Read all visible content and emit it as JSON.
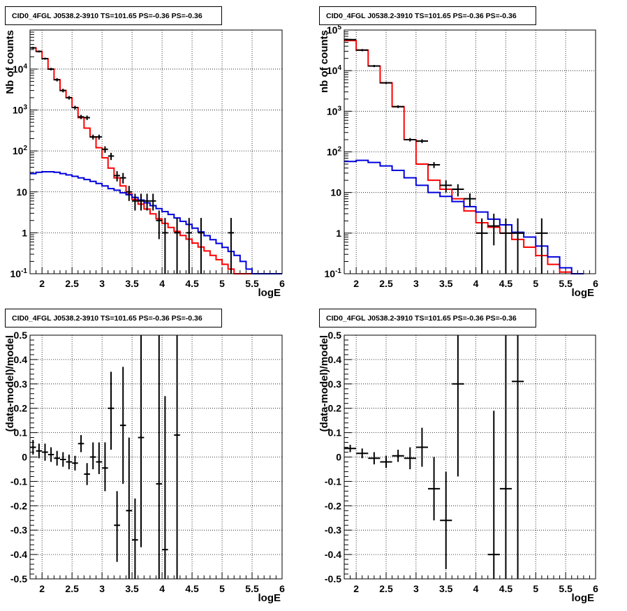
{
  "colors": {
    "data": "#000000",
    "model_total": "#ff0000",
    "model_bkg": "#0000dd",
    "frame": "#000000",
    "grid": "#000000"
  },
  "chart_data": [
    {
      "type": "line",
      "title": "CID0_4FGL J0538.2-3910 TS=101.65 PS=-0.36 PS=-0.36",
      "xlabel": "logE",
      "ylabel": "Nb of counts",
      "scale_y": "log",
      "xlim": [
        1.8,
        6
      ],
      "ylim": [
        0.1,
        90000
      ],
      "grid": true,
      "xticks": [
        "2",
        "2.5",
        "3",
        "3.5",
        "4",
        "4.5",
        "5",
        "5.5",
        "6"
      ],
      "yticks": [
        "10^-1",
        "1",
        "10",
        "10^2",
        "10^3",
        "10^4"
      ],
      "model_edges": [
        1.8,
        1.9,
        2.0,
        2.1,
        2.2,
        2.3,
        2.4,
        2.5,
        2.6,
        2.7,
        2.8,
        2.9,
        3.0,
        3.1,
        3.2,
        3.3,
        3.4,
        3.5,
        3.6,
        3.7,
        3.8,
        3.9,
        4.0,
        4.1,
        4.2,
        4.3,
        4.4,
        4.5,
        4.6,
        4.7,
        4.8,
        4.9,
        5.0,
        5.1,
        5.2,
        5.3,
        5.4,
        5.5,
        5.6,
        5.7,
        5.8,
        5.9,
        6.0
      ],
      "series": [
        {
          "values": [
            33000,
            27000,
            18000,
            10000,
            5500,
            3000,
            2000,
            1150,
            650,
            360,
            220,
            120,
            68,
            38,
            22,
            14,
            9,
            6.5,
            5,
            3.8,
            2.9,
            2.2,
            1.7,
            1.35,
            1.08,
            0.86,
            0.7,
            0.56,
            0.45,
            0.36,
            0.28,
            0.22,
            0.17,
            0.13,
            0.1,
            0.1,
            0.1,
            0.1,
            0.1,
            0.1,
            0.1,
            0.1
          ]
        },
        {
          "values": [
            28,
            30,
            31,
            31,
            30,
            28,
            26,
            24,
            22,
            20,
            18,
            16,
            14,
            12,
            11,
            9.5,
            8.5,
            7.3,
            6.3,
            5.4,
            4.6,
            3.9,
            3.3,
            2.8,
            2.3,
            1.9,
            1.6,
            1.3,
            1.05,
            0.85,
            0.68,
            0.55,
            0.44,
            0.35,
            0.28,
            0.2,
            0.13,
            0.1,
            0.1,
            0.1,
            0.1,
            0.1
          ]
        }
      ],
      "points": [
        {
          "x": 1.85,
          "y": 33000,
          "dx": 0.05,
          "lo": 31000,
          "hi": 35000
        },
        {
          "x": 1.95,
          "y": 27000,
          "dx": 0.05,
          "lo": 25500,
          "hi": 28500
        },
        {
          "x": 2.05,
          "y": 18000,
          "dx": 0.05,
          "lo": 17000,
          "hi": 19000
        },
        {
          "x": 2.15,
          "y": 10000,
          "dx": 0.05,
          "lo": 9300,
          "hi": 10700
        },
        {
          "x": 2.25,
          "y": 5500,
          "dx": 0.05,
          "lo": 5000,
          "hi": 6000
        },
        {
          "x": 2.35,
          "y": 3000,
          "dx": 0.05,
          "lo": 2700,
          "hi": 3300
        },
        {
          "x": 2.45,
          "y": 2000,
          "dx": 0.05,
          "lo": 1800,
          "hi": 2200
        },
        {
          "x": 2.55,
          "y": 1150,
          "dx": 0.05,
          "lo": 1030,
          "hi": 1270
        },
        {
          "x": 2.65,
          "y": 680,
          "dx": 0.05,
          "lo": 600,
          "hi": 760
        },
        {
          "x": 2.75,
          "y": 650,
          "dx": 0.05,
          "lo": 570,
          "hi": 730
        },
        {
          "x": 2.85,
          "y": 220,
          "dx": 0.05,
          "lo": 190,
          "hi": 250
        },
        {
          "x": 2.95,
          "y": 220,
          "dx": 0.05,
          "lo": 190,
          "hi": 250
        },
        {
          "x": 3.05,
          "y": 110,
          "dx": 0.05,
          "lo": 90,
          "hi": 130
        },
        {
          "x": 3.15,
          "y": 75,
          "dx": 0.05,
          "lo": 60,
          "hi": 90
        },
        {
          "x": 3.25,
          "y": 25,
          "dx": 0.05,
          "lo": 18,
          "hi": 32
        },
        {
          "x": 3.35,
          "y": 22,
          "dx": 0.05,
          "lo": 16,
          "hi": 29
        },
        {
          "x": 3.45,
          "y": 10,
          "dx": 0.05,
          "lo": 6,
          "hi": 14
        },
        {
          "x": 3.55,
          "y": 6,
          "dx": 0.05,
          "lo": 3.5,
          "hi": 9
        },
        {
          "x": 3.65,
          "y": 6,
          "dx": 0.05,
          "lo": 3.5,
          "hi": 9
        },
        {
          "x": 3.75,
          "y": 6,
          "dx": 0.05,
          "lo": 3.5,
          "hi": 9
        },
        {
          "x": 3.85,
          "y": 6,
          "dx": 0.05,
          "lo": 3.5,
          "hi": 9
        },
        {
          "x": 3.95,
          "y": 2,
          "dx": 0.05,
          "lo": 0.7,
          "hi": 3.5
        },
        {
          "x": 4.05,
          "y": 1,
          "dx": 0.05,
          "lo": 0.1,
          "hi": 2.3
        },
        {
          "x": 4.25,
          "y": 1,
          "dx": 0.05,
          "lo": 0.1,
          "hi": 2.3
        },
        {
          "x": 4.45,
          "y": 1,
          "dx": 0.05,
          "lo": 0.1,
          "hi": 2.3
        },
        {
          "x": 4.65,
          "y": 1,
          "dx": 0.05,
          "lo": 0.1,
          "hi": 2.3
        },
        {
          "x": 5.15,
          "y": 1,
          "dx": 0.05,
          "lo": 0.1,
          "hi": 2.3
        }
      ]
    },
    {
      "type": "line",
      "title": "CID0_4FGL J0538.2-3910 TS=101.65 PS=-0.36 PS=-0.36",
      "xlabel": "logE",
      "ylabel": "nb of counts",
      "scale_y": "log",
      "xlim": [
        1.8,
        6
      ],
      "ylim": [
        0.1,
        100000
      ],
      "grid": true,
      "xticks": [
        "2",
        "2.5",
        "3",
        "3.5",
        "4",
        "4.5",
        "5",
        "5.5",
        "6"
      ],
      "yticks": [
        "10^-1",
        "1",
        "10",
        "10^2",
        "10^3",
        "10^4",
        "10^5"
      ],
      "model_edges": [
        1.8,
        2.0,
        2.2,
        2.4,
        2.6,
        2.8,
        3.0,
        3.2,
        3.4,
        3.6,
        3.8,
        4.0,
        4.2,
        4.4,
        4.6,
        4.8,
        5.0,
        5.2,
        5.4,
        5.6,
        5.8,
        6.0
      ],
      "series": [
        {
          "values": [
            55000,
            32000,
            13000,
            5000,
            1300,
            200,
            50,
            20,
            12,
            7,
            3.5,
            1.8,
            1.4,
            1,
            0.7,
            0.45,
            0.28,
            0.17,
            0.11,
            0.1
          ]
        },
        {
          "values": [
            58,
            62,
            55,
            45,
            35,
            23,
            15,
            10,
            8,
            6,
            4.5,
            3.3,
            2.2,
            1.6,
            1.05,
            0.8,
            0.48,
            0.26,
            0.14,
            0.1
          ]
        }
      ],
      "points": [
        {
          "x": 1.9,
          "y": 58000,
          "dx": 0.1,
          "lo": 55000,
          "hi": 61000
        },
        {
          "x": 2.1,
          "y": 32000,
          "dx": 0.1,
          "lo": 30000,
          "hi": 34000
        },
        {
          "x": 2.3,
          "y": 13000,
          "dx": 0.1,
          "lo": 12200,
          "hi": 13800
        },
        {
          "x": 2.5,
          "y": 5000,
          "dx": 0.1,
          "lo": 4700,
          "hi": 5300
        },
        {
          "x": 2.7,
          "y": 1300,
          "dx": 0.1,
          "lo": 1200,
          "hi": 1400
        },
        {
          "x": 2.9,
          "y": 200,
          "dx": 0.1,
          "lo": 180,
          "hi": 220
        },
        {
          "x": 3.1,
          "y": 185,
          "dx": 0.1,
          "lo": 165,
          "hi": 205
        },
        {
          "x": 3.3,
          "y": 48,
          "dx": 0.1,
          "lo": 40,
          "hi": 56
        },
        {
          "x": 3.5,
          "y": 15,
          "dx": 0.1,
          "lo": 10,
          "hi": 20
        },
        {
          "x": 3.7,
          "y": 12,
          "dx": 0.1,
          "lo": 8,
          "hi": 16
        },
        {
          "x": 3.9,
          "y": 7,
          "dx": 0.1,
          "lo": 4.5,
          "hi": 9.5
        },
        {
          "x": 4.1,
          "y": 1,
          "dx": 0.1,
          "lo": 0.1,
          "hi": 2.3
        },
        {
          "x": 4.3,
          "y": 1.5,
          "dx": 0.1,
          "lo": 0.5,
          "hi": 3
        },
        {
          "x": 4.5,
          "y": 1,
          "dx": 0.1,
          "lo": 0.1,
          "hi": 2.3
        },
        {
          "x": 4.7,
          "y": 1,
          "dx": 0.1,
          "lo": 0.1,
          "hi": 2.3
        },
        {
          "x": 5.1,
          "y": 1,
          "dx": 0.1,
          "lo": 0.1,
          "hi": 2.3
        }
      ]
    },
    {
      "type": "scatter",
      "title": "CID0_4FGL J0538.2-3910 TS=101.65 PS=-0.36 PS=-0.36",
      "xlabel": "logE",
      "ylabel": "(data-model)/model",
      "xlim": [
        1.8,
        6
      ],
      "ylim": [
        -0.5,
        0.5
      ],
      "grid": true,
      "xticks": [
        "2",
        "2.5",
        "3",
        "3.5",
        "4",
        "4.5",
        "5",
        "5.5",
        "6"
      ],
      "yticks": [
        "-0.5",
        "-0.4",
        "-0.3",
        "-0.2",
        "-0.1",
        "0",
        "0.1",
        "0.2",
        "0.3",
        "0.4",
        "0.5"
      ],
      "points": [
        {
          "x": 1.85,
          "y": 0.04,
          "dx": 0.05,
          "lo": 0.01,
          "hi": 0.07
        },
        {
          "x": 1.95,
          "y": 0.025,
          "dx": 0.05,
          "lo": -0.005,
          "hi": 0.055
        },
        {
          "x": 2.05,
          "y": 0.02,
          "dx": 0.05,
          "lo": -0.015,
          "hi": 0.055
        },
        {
          "x": 2.15,
          "y": 0.01,
          "dx": 0.05,
          "lo": -0.02,
          "hi": 0.04
        },
        {
          "x": 2.25,
          "y": -0.005,
          "dx": 0.05,
          "lo": -0.035,
          "hi": 0.025
        },
        {
          "x": 2.35,
          "y": -0.01,
          "dx": 0.05,
          "lo": -0.04,
          "hi": 0.02
        },
        {
          "x": 2.45,
          "y": -0.02,
          "dx": 0.05,
          "lo": -0.05,
          "hi": 0.01
        },
        {
          "x": 2.55,
          "y": -0.025,
          "dx": 0.05,
          "lo": -0.055,
          "hi": 0.005
        },
        {
          "x": 2.65,
          "y": 0.055,
          "dx": 0.05,
          "lo": 0.02,
          "hi": 0.09
        },
        {
          "x": 2.75,
          "y": -0.07,
          "dx": 0.05,
          "lo": -0.115,
          "hi": -0.025
        },
        {
          "x": 2.85,
          "y": 0.0,
          "dx": 0.05,
          "lo": -0.05,
          "hi": 0.06
        },
        {
          "x": 2.95,
          "y": -0.02,
          "dx": 0.05,
          "lo": -0.07,
          "hi": 0.06
        },
        {
          "x": 3.05,
          "y": -0.045,
          "dx": 0.05,
          "lo": -0.14,
          "hi": 0.06
        },
        {
          "x": 3.15,
          "y": 0.2,
          "dx": 0.05,
          "lo": 0.03,
          "hi": 0.35
        },
        {
          "x": 3.25,
          "y": -0.28,
          "dx": 0.05,
          "lo": -0.43,
          "hi": -0.14
        },
        {
          "x": 3.35,
          "y": 0.13,
          "dx": 0.05,
          "lo": -0.11,
          "hi": 0.37
        },
        {
          "x": 3.45,
          "y": -0.22,
          "dx": 0.05,
          "lo": -0.5,
          "hi": 0.08
        },
        {
          "x": 3.55,
          "y": -0.34,
          "dx": 0.05,
          "lo": -0.5,
          "hi": -0.17
        },
        {
          "x": 3.65,
          "y": 0.08,
          "dx": 0.05,
          "lo": -0.37,
          "hi": 0.5
        },
        {
          "x": 3.95,
          "y": -0.11,
          "dx": 0.05,
          "lo": -0.5,
          "hi": 0.5
        },
        {
          "x": 4.05,
          "y": -0.38,
          "dx": 0.05,
          "lo": -0.5,
          "hi": 0.25
        },
        {
          "x": 4.25,
          "y": 0.09,
          "dx": 0.05,
          "lo": -0.5,
          "hi": 0.5
        }
      ]
    },
    {
      "type": "scatter",
      "title": "CID0_4FGL J0538.2-3910 TS=101.65 PS=-0.36 PS=-0.36",
      "xlabel": "logE",
      "ylabel": "(data-model)/model",
      "xlim": [
        1.8,
        6
      ],
      "ylim": [
        -0.5,
        0.5
      ],
      "grid": true,
      "xticks": [
        "2",
        "2.5",
        "3",
        "3.5",
        "4",
        "4.5",
        "5",
        "5.5",
        "6"
      ],
      "yticks": [
        "-0.5",
        "-0.4",
        "-0.3",
        "-0.2",
        "-0.1",
        "0",
        "0.1",
        "0.2",
        "0.3",
        "0.4",
        "0.5"
      ],
      "points": [
        {
          "x": 1.9,
          "y": 0.035,
          "dx": 0.1,
          "lo": 0.02,
          "hi": 0.05
        },
        {
          "x": 2.1,
          "y": 0.015,
          "dx": 0.1,
          "lo": -0.005,
          "hi": 0.035
        },
        {
          "x": 2.3,
          "y": -0.005,
          "dx": 0.1,
          "lo": -0.03,
          "hi": 0.02
        },
        {
          "x": 2.5,
          "y": -0.02,
          "dx": 0.1,
          "lo": -0.045,
          "hi": 0.005
        },
        {
          "x": 2.7,
          "y": 0.005,
          "dx": 0.1,
          "lo": -0.02,
          "hi": 0.03
        },
        {
          "x": 2.9,
          "y": -0.005,
          "dx": 0.1,
          "lo": -0.05,
          "hi": 0.04
        },
        {
          "x": 3.1,
          "y": 0.04,
          "dx": 0.1,
          "lo": -0.04,
          "hi": 0.12
        },
        {
          "x": 3.3,
          "y": -0.13,
          "dx": 0.1,
          "lo": -0.26,
          "hi": 0.0
        },
        {
          "x": 3.5,
          "y": -0.26,
          "dx": 0.1,
          "lo": -0.46,
          "hi": -0.06
        },
        {
          "x": 3.7,
          "y": 0.3,
          "dx": 0.1,
          "lo": -0.08,
          "hi": 0.5
        },
        {
          "x": 4.3,
          "y": -0.4,
          "dx": 0.1,
          "lo": -0.5,
          "hi": 0.19
        },
        {
          "x": 4.5,
          "y": -0.13,
          "dx": 0.1,
          "lo": -0.5,
          "hi": 0.5
        },
        {
          "x": 4.7,
          "y": 0.31,
          "dx": 0.1,
          "lo": -0.5,
          "hi": 0.5
        }
      ]
    }
  ]
}
